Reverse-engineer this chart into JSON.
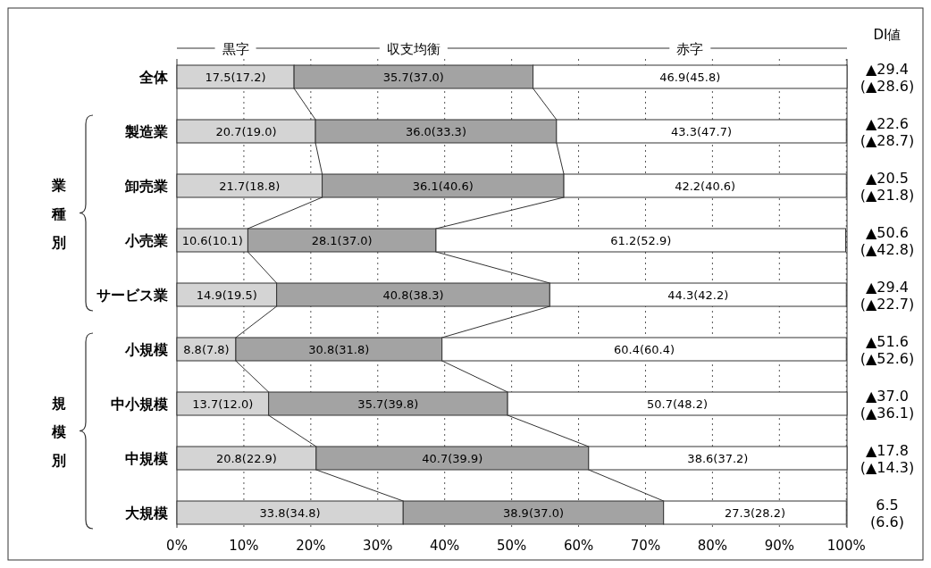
{
  "chart_data": {
    "type": "bar",
    "orientation": "horizontal",
    "stacked": true,
    "categories": [
      "全体",
      "製造業",
      "卸売業",
      "小売業",
      "サービス業",
      "小規模",
      "中小規模",
      "中規模",
      "大規模"
    ],
    "series": [
      {
        "name": "黒字",
        "color": "#d4d4d4",
        "values": [
          17.5,
          20.7,
          21.7,
          10.6,
          14.9,
          8.8,
          13.7,
          20.8,
          33.8
        ],
        "value_labels": [
          "17.5(17.2)",
          "20.7(19.0)",
          "21.7(18.8)",
          "10.6(10.1)",
          "14.9(19.5)",
          "8.8(7.8)",
          "13.7(12.0)",
          "20.8(22.9)",
          "33.8(34.8)"
        ]
      },
      {
        "name": "収支均衡",
        "color": "#a3a3a3",
        "values": [
          35.7,
          36.0,
          36.1,
          28.1,
          40.8,
          30.8,
          35.7,
          40.7,
          38.9
        ],
        "value_labels": [
          "35.7(37.0)",
          "36.0(33.3)",
          "36.1(40.6)",
          "28.1(37.0)",
          "40.8(38.3)",
          "30.8(31.8)",
          "35.7(39.8)",
          "40.7(39.9)",
          "38.9(37.0)"
        ]
      },
      {
        "name": "赤字",
        "color": "#ffffff",
        "values": [
          46.9,
          43.3,
          42.2,
          61.2,
          44.3,
          60.4,
          50.7,
          38.6,
          27.3
        ],
        "value_labels": [
          "46.9(45.8)",
          "43.3(47.7)",
          "42.2(40.6)",
          "61.2(52.9)",
          "44.3(42.2)",
          "60.4(60.4)",
          "50.7(48.2)",
          "38.6(37.2)",
          "27.3(28.2)"
        ]
      }
    ],
    "xlim": [
      0,
      100.1
    ],
    "xticks": [
      {
        "value": 0,
        "label": "0%"
      },
      {
        "value": 10,
        "label": "10%"
      },
      {
        "value": 20,
        "label": "20%"
      },
      {
        "value": 30,
        "label": "30%"
      },
      {
        "value": 40,
        "label": "40%"
      },
      {
        "value": 50,
        "label": "50%"
      },
      {
        "value": 60,
        "label": "60%"
      },
      {
        "value": 70,
        "label": "70%"
      },
      {
        "value": 80,
        "label": "80%"
      },
      {
        "value": 90,
        "label": "90%"
      },
      {
        "value": 100,
        "label": "100%"
      }
    ],
    "grid": "x",
    "legend": "top",
    "annotations": [
      "DI値",
      "▲29.4\n(▲28.6)",
      "▲22.6\n(▲28.7)",
      "▲20.5\n(▲21.8)",
      "▲50.6\n(▲42.8)",
      "▲29.4\n(▲22.7)",
      "▲51.6\n(▲52.6)",
      "▲37.0\n(▲36.1)",
      "▲17.8\n(▲14.3)",
      "6.5\n(6.6)",
      "業種別",
      "規模別"
    ]
  }
}
